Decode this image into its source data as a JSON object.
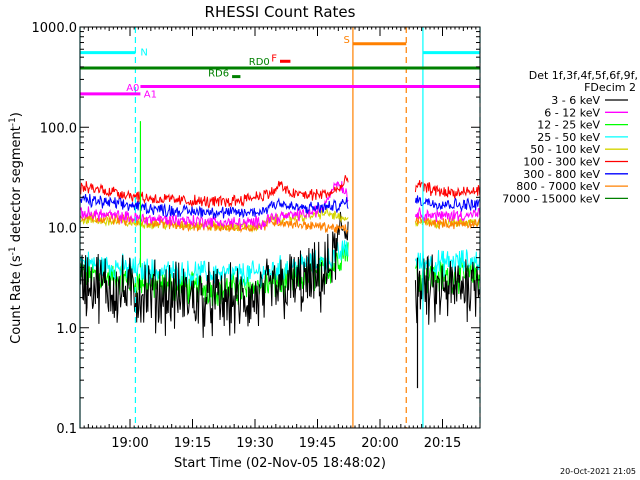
{
  "chart_data": {
    "type": "line",
    "title": "RHESSI Count Rates",
    "xlabel": "Start Time (02-Nov-05 18:48:02)",
    "ylabel": "Count Rate (s⁻¹ detector segment⁻¹)",
    "ylabel_main": "Count Rate (s",
    "ylabel_mid": " detector segment",
    "ylabel_sup": "-1",
    "ylabel_end": ")",
    "y_scale": "log",
    "ylim": [
      0.1,
      1000
    ],
    "xlim_minutes": [
      0,
      96
    ],
    "x_ticks": [
      {
        "label": "19:00",
        "min": 12
      },
      {
        "label": "19:15",
        "min": 27
      },
      {
        "label": "19:30",
        "min": 42
      },
      {
        "label": "19:45",
        "min": 57
      },
      {
        "label": "20:00",
        "min": 72
      },
      {
        "label": "20:15",
        "min": 87
      }
    ],
    "y_ticks": [
      {
        "label": "0.1",
        "v": 0.1
      },
      {
        "label": "1.0",
        "v": 1
      },
      {
        "label": "10.0",
        "v": 10
      },
      {
        "label": "100.0",
        "v": 100
      },
      {
        "label": "1000.0",
        "v": 1000
      }
    ],
    "legend": {
      "position": "right",
      "header": [
        "Det 1f,3f,4f,5f,6f,9f,",
        "FDecim 2"
      ],
      "entries": [
        {
          "name": "3 - 6 keV",
          "color": "#000000"
        },
        {
          "name": "6 - 12 keV",
          "color": "#ff00ff"
        },
        {
          "name": "12 - 25 keV",
          "color": "#00ff00"
        },
        {
          "name": "25 - 50 keV",
          "color": "#00ffff"
        },
        {
          "name": "50 - 100 keV",
          "color": "#d4d400"
        },
        {
          "name": "100 - 300 keV",
          "color": "#ff0000"
        },
        {
          "name": "300 - 800 keV",
          "color": "#0000ff"
        },
        {
          "name": "800 - 7000 keV",
          "color": "#ff8000"
        },
        {
          "name": "7000 - 15000 keV",
          "color": "#008000"
        }
      ]
    },
    "series": [
      {
        "band": "3 - 6 keV",
        "color": "#000000",
        "noise": 0.28,
        "segments": [
          {
            "x": [
              0,
              5,
              10,
              15,
              20,
              25,
              30,
              35,
              40,
              44,
              46,
              50,
              54,
              57,
              59,
              60.5,
              61,
              62,
              63,
              64.5
            ],
            "y": [
              3.0,
              2.6,
              2.3,
              2.2,
              2.1,
              2.0,
              1.9,
              1.8,
              1.8,
              2.0,
              2.4,
              2.6,
              2.8,
              3.0,
              3.3,
              4.5,
              5.0,
              7.0,
              9.5,
              10.5
            ]
          },
          {
            "x": [
              80.5,
              83,
              86,
              90,
              94,
              96
            ],
            "y": [
              2.4,
              2.3,
              2.2,
              2.4,
              2.9,
              3.1
            ]
          }
        ]
      },
      {
        "band": "6 - 12 keV",
        "color": "#ff00ff",
        "noise": 0.05,
        "segments": [
          {
            "x": [
              0,
              5,
              10,
              15,
              20,
              25,
              30,
              35,
              40,
              44,
              45,
              50,
              55,
              58,
              60,
              61.5,
              62.5,
              63.5,
              64.5
            ],
            "y": [
              14.0,
              13.5,
              12.8,
              12.3,
              12.0,
              11.8,
              11.5,
              11.2,
              11.0,
              11.2,
              12.5,
              13.0,
              14.0,
              15.0,
              22.0,
              28.0,
              27.0,
              24.0,
              18.0
            ]
          },
          {
            "x": [
              80.5,
              83,
              86,
              90,
              94,
              96
            ],
            "y": [
              14.0,
              13.5,
              13.0,
              13.2,
              13.5,
              13.5
            ]
          }
        ]
      },
      {
        "band": "12 - 25 keV",
        "color": "#00ff00",
        "noise": 0.13,
        "segments": [
          {
            "x": [
              0,
              5,
              10,
              15,
              20,
              25,
              30,
              35,
              40,
              44,
              48,
              52,
              56,
              59,
              61,
              63,
              64.5
            ],
            "y": [
              3.5,
              3.2,
              3.0,
              2.8,
              2.6,
              2.5,
              2.5,
              2.4,
              2.4,
              2.6,
              2.8,
              3.0,
              3.3,
              3.7,
              4.2,
              5.5,
              6.5
            ]
          },
          {
            "x": [
              80.5,
              83,
              86,
              90,
              94,
              96
            ],
            "y": [
              3.5,
              3.3,
              3.2,
              3.3,
              3.4,
              3.5
            ]
          }
        ]
      },
      {
        "band": "25 - 50 keV",
        "color": "#00ffff",
        "noise": 0.1,
        "segments": [
          {
            "x": [
              0,
              5,
              10,
              15,
              20,
              25,
              30,
              35,
              40,
              44,
              48,
              52,
              56,
              59,
              61,
              63,
              64.5
            ],
            "y": [
              4.5,
              4.2,
              4.0,
              3.8,
              3.6,
              3.5,
              3.5,
              3.4,
              3.4,
              3.6,
              3.9,
              4.1,
              4.3,
              4.6,
              5.0,
              5.8,
              6.5
            ]
          },
          {
            "x": [
              80.5,
              83,
              86,
              90,
              94,
              96
            ],
            "y": [
              4.6,
              4.5,
              4.4,
              4.5,
              4.6,
              4.7
            ]
          }
        ]
      },
      {
        "band": "50 - 100 keV",
        "color": "#d4d400",
        "noise": 0.04,
        "segments": [
          {
            "x": [
              0,
              5,
              10,
              15,
              20,
              25,
              30,
              35,
              40,
              44,
              45,
              50,
              55,
              59,
              61.5,
              63,
              64.5
            ],
            "y": [
              12.0,
              11.6,
              11.3,
              11.0,
              10.8,
              10.6,
              10.4,
              10.2,
              10.2,
              10.5,
              12.0,
              12.5,
              13.0,
              14.0,
              13.0,
              12.0,
              11.5
            ]
          },
          {
            "x": [
              80.5,
              83,
              86,
              90,
              94,
              96
            ],
            "y": [
              11.5,
              11.3,
              11.0,
              11.2,
              11.3,
              11.3
            ]
          }
        ]
      },
      {
        "band": "100 - 300 keV",
        "color": "#ff0000",
        "noise": 0.05,
        "segments": [
          {
            "x": [
              0,
              5,
              10,
              15,
              20,
              25,
              30,
              35,
              40,
              46,
              48,
              50,
              55,
              60,
              62,
              64.5
            ],
            "y": [
              25.0,
              24.0,
              22.0,
              20.0,
              19.0,
              18.5,
              18.0,
              18.0,
              19.5,
              22.0,
              27.0,
              22.0,
              21.0,
              22.0,
              24.0,
              30.0
            ]
          },
          {
            "x": [
              80.5,
              83,
              86,
              90,
              94,
              96
            ],
            "y": [
              27.0,
              25.0,
              23.0,
              22.0,
              22.5,
              23.5
            ]
          }
        ]
      },
      {
        "band": "300 - 800 keV",
        "color": "#0000ff",
        "noise": 0.05,
        "segments": [
          {
            "x": [
              0,
              5,
              10,
              15,
              20,
              25,
              30,
              35,
              40,
              44,
              46,
              48,
              50,
              55,
              60,
              62,
              64.5
            ],
            "y": [
              19.0,
              18.0,
              17.0,
              16.0,
              15.0,
              14.5,
              14.5,
              14.0,
              14.0,
              14.5,
              17.0,
              18.0,
              16.0,
              15.5,
              16.0,
              16.5,
              18.0
            ]
          },
          {
            "x": [
              80.5,
              83,
              86,
              90,
              94,
              96
            ],
            "y": [
              19.0,
              18.0,
              17.5,
              17.0,
              17.0,
              17.5
            ]
          }
        ]
      },
      {
        "band": "800 - 7000 keV",
        "color": "#ff8000",
        "noise": 0.04,
        "segments": [
          {
            "x": [
              0,
              5,
              10,
              15,
              20,
              25,
              30,
              35,
              40,
              44,
              46,
              50,
              55,
              60,
              64.5
            ],
            "y": [
              13.0,
              12.5,
              12.0,
              11.5,
              11.0,
              10.5,
              10.2,
              10.0,
              10.0,
              10.5,
              11.5,
              11.0,
              10.5,
              10.0,
              9.5
            ]
          },
          {
            "x": [
              80.5,
              83,
              86,
              90,
              94,
              96
            ],
            "y": [
              12.0,
              11.5,
              11.0,
              10.8,
              11.0,
              11.2
            ]
          }
        ]
      },
      {
        "band": "7000 - 15000 keV",
        "color": "#008000",
        "noise": 0.0,
        "segments": []
      }
    ],
    "spikes": [
      {
        "band": "12 - 25 keV",
        "color": "#00ff00",
        "x": 14.5,
        "y_low": 4,
        "y_high": 115
      },
      {
        "band": "3 - 6 keV",
        "color": "#000000",
        "x": 81,
        "y_low": 0.25,
        "y_high": 5
      }
    ],
    "vertical_markers": [
      {
        "x": 0,
        "color": "#00ffff",
        "style": "solid"
      },
      {
        "x": 13.3,
        "color": "#00ffff",
        "style": "dashed"
      },
      {
        "x": 65.5,
        "color": "#ff8000",
        "style": "solid"
      },
      {
        "x": 78.3,
        "color": "#ff8000",
        "style": "dashed"
      },
      {
        "x": 82.3,
        "color": "#00ffff",
        "style": "solid"
      },
      {
        "x": 96,
        "color": "#00ffff",
        "style": "dashed"
      }
    ],
    "flag_bars": [
      {
        "label": "N",
        "color": "#00ffff",
        "x_start": 0,
        "x_end": 13.3,
        "y": 555,
        "label_side": "right"
      },
      {
        "label": "",
        "color": "#00ffff",
        "x_start": 82.3,
        "x_end": 96,
        "y": 555,
        "label_side": "none"
      },
      {
        "label": "S",
        "color": "#ff8000",
        "x_start": 65.5,
        "x_end": 78.3,
        "y": 680,
        "label_side": "left"
      },
      {
        "label": "F",
        "color": "#ff0000",
        "x_start": 48,
        "x_end": 50.5,
        "y": 455,
        "label_side": "left"
      },
      {
        "label": "RD0",
        "color": "#008000",
        "x_start": 0,
        "x_end": 96,
        "y": 390,
        "label_side": "mid",
        "label_x": 40.5
      },
      {
        "label": "RD6",
        "color": "#008000",
        "x_start": 36.5,
        "x_end": 38.5,
        "y": 320,
        "label_side": "left"
      },
      {
        "label": "A0",
        "color": "#ff00ff",
        "x_start": 0,
        "x_end": 14.5,
        "y": 215,
        "label_side": "end"
      },
      {
        "label": "A1",
        "color": "#ff00ff",
        "x_start": 14.5,
        "x_end": 96,
        "y": 255,
        "label_side": "below",
        "label_x": 15.3
      }
    ],
    "timestamp": "20-Oct-2021 21:05"
  }
}
